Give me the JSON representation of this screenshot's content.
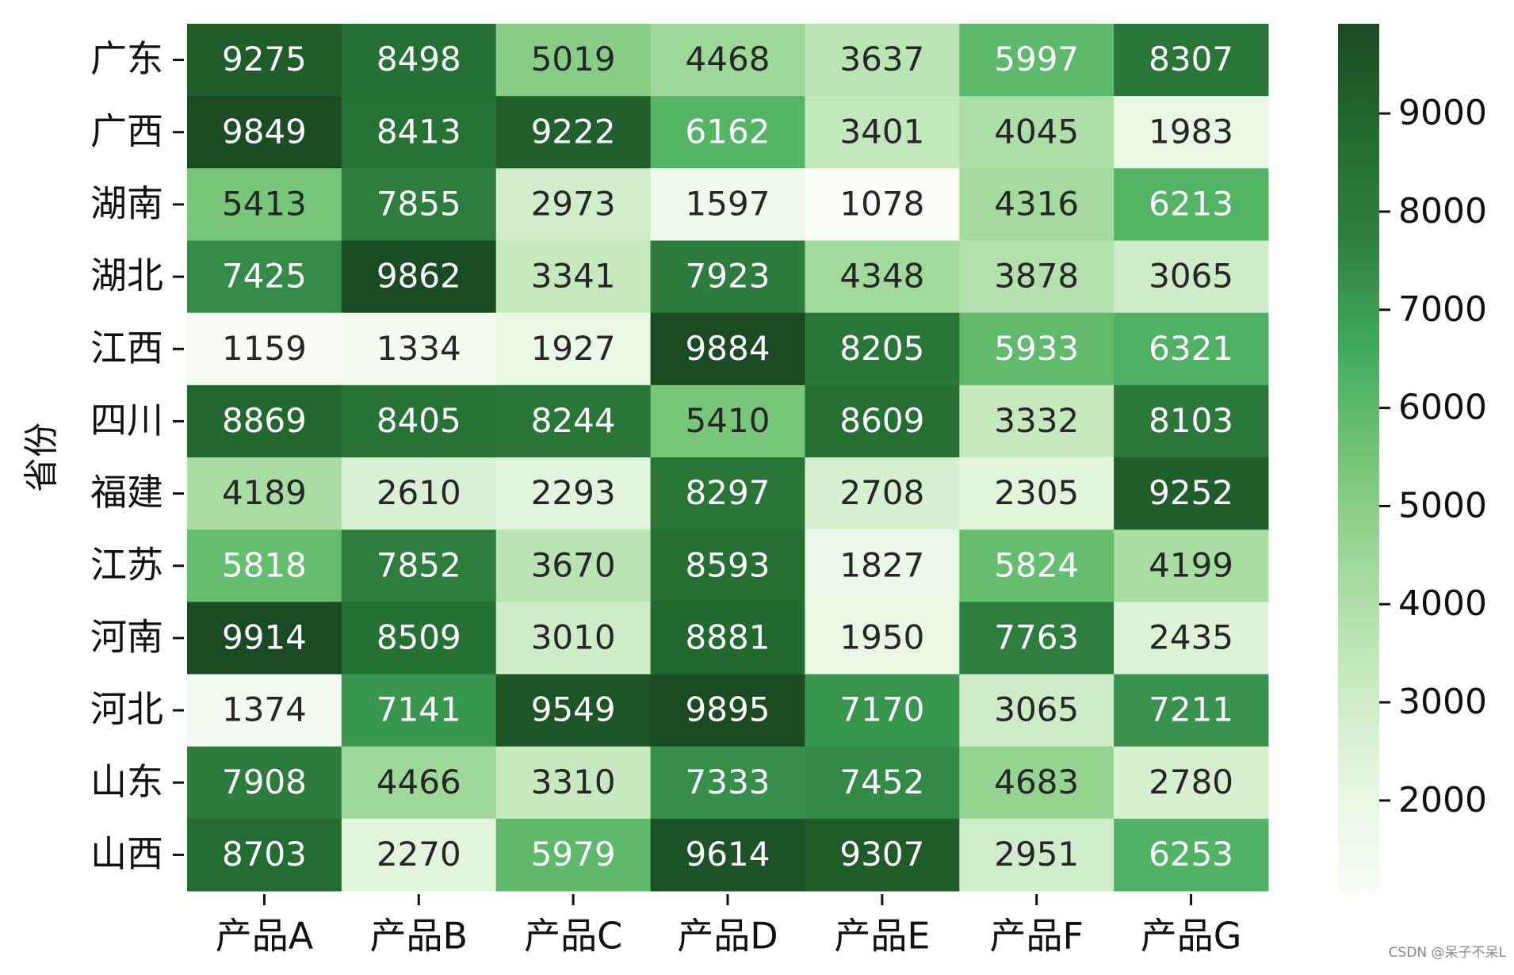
{
  "chart_data": {
    "type": "heatmap",
    "ylabel": "省份",
    "x_categories": [
      "产品A",
      "产品B",
      "产品C",
      "产品D",
      "产品E",
      "产品F",
      "产品G"
    ],
    "y_categories": [
      "广东",
      "广西",
      "湖南",
      "湖北",
      "江西",
      "四川",
      "福建",
      "江苏",
      "河南",
      "河北",
      "山东",
      "山西"
    ],
    "values": [
      [
        9275,
        8498,
        5019,
        4468,
        3637,
        5997,
        8307
      ],
      [
        9849,
        8413,
        9222,
        6162,
        3401,
        4045,
        1983
      ],
      [
        5413,
        7855,
        2973,
        1597,
        1078,
        4316,
        6213
      ],
      [
        7425,
        9862,
        3341,
        7923,
        4348,
        3878,
        3065
      ],
      [
        1159,
        1334,
        1927,
        9884,
        8205,
        5933,
        6321
      ],
      [
        8869,
        8405,
        8244,
        5410,
        8609,
        3332,
        8103
      ],
      [
        4189,
        2610,
        2293,
        8297,
        2708,
        2305,
        9252
      ],
      [
        5818,
        7852,
        3670,
        8593,
        1827,
        5824,
        4199
      ],
      [
        9914,
        8509,
        3010,
        8881,
        1950,
        7763,
        2435
      ],
      [
        1374,
        7141,
        9549,
        9895,
        7170,
        3065,
        7211
      ],
      [
        7908,
        4466,
        3310,
        7333,
        7452,
        4683,
        2780
      ],
      [
        8703,
        2270,
        5979,
        9614,
        9307,
        2951,
        6253
      ]
    ],
    "clim": [
      1078,
      9914
    ],
    "colorbar_ticks": [
      2000,
      3000,
      4000,
      5000,
      6000,
      7000,
      8000,
      9000
    ],
    "colormap": [
      "#f7fcf5",
      "#e5f5e0",
      "#c7e9c0",
      "#a1d99b",
      "#74c476",
      "#41ab5d",
      "#2f8040",
      "#236b30",
      "#1a4a22"
    ],
    "watermark": "CSDN @呆子不呆L"
  }
}
